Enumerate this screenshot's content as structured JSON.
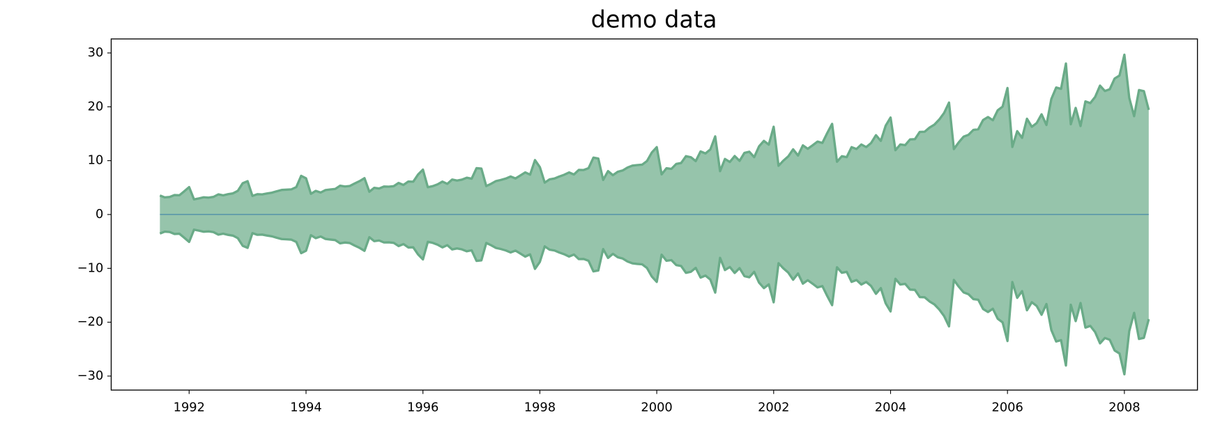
{
  "chart_data": {
    "type": "fill_between",
    "title": "demo data",
    "mirror": true,
    "baseline": 0,
    "fill_color": "#96c4ab",
    "edge_color": "#6aab88",
    "baseline_color": "#3f82a8",
    "x": [
      "1991-07",
      "1991-08",
      "1991-09",
      "1991-10",
      "1991-11",
      "1991-12",
      "1992-01",
      "1992-02",
      "1992-03",
      "1992-04",
      "1992-05",
      "1992-06",
      "1992-07",
      "1992-08",
      "1992-09",
      "1992-10",
      "1992-11",
      "1992-12",
      "1993-01",
      "1993-02",
      "1993-03",
      "1993-04",
      "1993-05",
      "1993-06",
      "1993-07",
      "1993-08",
      "1993-09",
      "1993-10",
      "1993-11",
      "1993-12",
      "1994-01",
      "1994-02",
      "1994-03",
      "1994-04",
      "1994-05",
      "1994-06",
      "1994-07",
      "1994-08",
      "1994-09",
      "1994-10",
      "1994-11",
      "1994-12",
      "1995-01",
      "1995-02",
      "1995-03",
      "1995-04",
      "1995-05",
      "1995-06",
      "1995-07",
      "1995-08",
      "1995-09",
      "1995-10",
      "1995-11",
      "1995-12",
      "1996-01",
      "1996-02",
      "1996-03",
      "1996-04",
      "1996-05",
      "1996-06",
      "1996-07",
      "1996-08",
      "1996-09",
      "1996-10",
      "1996-11",
      "1996-12",
      "1997-01",
      "1997-02",
      "1997-03",
      "1997-04",
      "1997-05",
      "1997-06",
      "1997-07",
      "1997-08",
      "1997-09",
      "1997-10",
      "1997-11",
      "1997-12",
      "1998-01",
      "1998-02",
      "1998-03",
      "1998-04",
      "1998-05",
      "1998-06",
      "1998-07",
      "1998-08",
      "1998-09",
      "1998-10",
      "1998-11",
      "1998-12",
      "1999-01",
      "1999-02",
      "1999-03",
      "1999-04",
      "1999-05",
      "1999-06",
      "1999-07",
      "1999-08",
      "1999-09",
      "1999-10",
      "1999-11",
      "1999-12",
      "2000-01",
      "2000-02",
      "2000-03",
      "2000-04",
      "2000-05",
      "2000-06",
      "2000-07",
      "2000-08",
      "2000-09",
      "2000-10",
      "2000-11",
      "2000-12",
      "2001-01",
      "2001-02",
      "2001-03",
      "2001-04",
      "2001-05",
      "2001-06",
      "2001-07",
      "2001-08",
      "2001-09",
      "2001-10",
      "2001-11",
      "2001-12",
      "2002-01",
      "2002-02",
      "2002-03",
      "2002-04",
      "2002-05",
      "2002-06",
      "2002-07",
      "2002-08",
      "2002-09",
      "2002-10",
      "2002-11",
      "2002-12",
      "2003-01",
      "2003-02",
      "2003-03",
      "2003-04",
      "2003-05",
      "2003-06",
      "2003-07",
      "2003-08",
      "2003-09",
      "2003-10",
      "2003-11",
      "2003-12",
      "2004-01",
      "2004-02",
      "2004-03",
      "2004-04",
      "2004-05",
      "2004-06",
      "2004-07",
      "2004-08",
      "2004-09",
      "2004-10",
      "2004-11",
      "2004-12",
      "2005-01",
      "2005-02",
      "2005-03",
      "2005-04",
      "2005-05",
      "2005-06",
      "2005-07",
      "2005-08",
      "2005-09",
      "2005-10",
      "2005-11",
      "2005-12",
      "2006-01",
      "2006-02",
      "2006-03",
      "2006-04",
      "2006-05",
      "2006-06",
      "2006-07",
      "2006-08",
      "2006-09",
      "2006-10",
      "2006-11",
      "2006-12",
      "2007-01",
      "2007-02",
      "2007-03",
      "2007-04",
      "2007-05",
      "2007-06",
      "2007-07",
      "2007-08",
      "2007-09",
      "2007-10",
      "2007-11",
      "2007-12",
      "2008-01",
      "2008-02",
      "2008-03",
      "2008-04",
      "2008-05",
      "2008-06"
    ],
    "values": [
      3.53,
      3.18,
      3.25,
      3.61,
      3.57,
      4.31,
      5.09,
      2.81,
      2.99,
      3.2,
      3.13,
      3.27,
      3.74,
      3.56,
      3.78,
      3.92,
      4.39,
      5.81,
      6.19,
      3.45,
      3.77,
      3.73,
      3.91,
      4.05,
      4.32,
      4.56,
      4.61,
      4.67,
      5.09,
      7.18,
      6.73,
      3.84,
      4.39,
      4.08,
      4.54,
      4.65,
      4.75,
      5.35,
      5.2,
      5.3,
      5.77,
      6.2,
      6.75,
      4.22,
      4.95,
      4.82,
      5.19,
      5.17,
      5.26,
      5.86,
      5.49,
      6.12,
      6.09,
      7.42,
      8.33,
      5.07,
      5.26,
      5.6,
      6.11,
      5.69,
      6.49,
      6.3,
      6.47,
      6.83,
      6.65,
      8.61,
      8.52,
      5.28,
      5.71,
      6.21,
      6.41,
      6.67,
      7.05,
      6.7,
      7.25,
      7.82,
      7.4,
      10.1,
      8.8,
      5.92,
      6.53,
      6.68,
      7.06,
      7.38,
      7.81,
      7.43,
      8.28,
      8.26,
      8.6,
      10.56,
      10.39,
      6.42,
      8.06,
      7.3,
      7.94,
      8.17,
      8.72,
      9.07,
      9.18,
      9.25,
      9.93,
      11.53,
      12.51,
      7.46,
      8.59,
      8.47,
      9.39,
      9.56,
      10.83,
      10.64,
      9.91,
      11.71,
      11.34,
      12.08,
      14.5,
      8.05,
      10.31,
      9.75,
      10.85,
      9.96,
      11.44,
      11.66,
      10.65,
      12.65,
      13.67,
      12.97,
      16.3,
      9.05,
      10,
      10.79,
      12.11,
      10.95,
      12.84,
      12.2,
      12.85,
      13.54,
      13.29,
      15.13,
      16.83,
      9.8,
      10.82,
      10.65,
      12.51,
      12.16,
      13,
      12.52,
      13.27,
      14.73,
      13.67,
      16.5,
      18,
      11.94,
      13,
      12.88,
      13.94,
      13.99,
      15.34,
      15.37,
      16.14,
      16.69,
      17.64,
      18.87,
      20.78,
      12.15,
      13.4,
      14.46,
      14.8,
      15.71,
      15.83,
      17.55,
      18.1,
      17.5,
      19.35,
      20.03,
      23.49,
      12.54,
      15.47,
      14.23,
      17.78,
      16.29,
      16.98,
      18.61,
      16.62,
      21.43,
      23.58,
      23.33,
      28.04,
      16.76,
      19.79,
      16.43,
      21,
      20.68,
      21.83,
      23.93,
      22.93,
      23.26,
      25.25,
      25.81,
      29.67,
      21.65,
      18.26,
      23.11,
      22.91,
      19.43
    ],
    "xlim": [
      "1990-09",
      "2009-04"
    ],
    "xticks": [
      "1992",
      "1994",
      "1996",
      "1998",
      "2000",
      "2002",
      "2004",
      "2006",
      "2008"
    ],
    "ylim": [
      -32.6,
      32.6
    ],
    "yticks": [
      {
        "value": -30,
        "label": "−30"
      },
      {
        "value": -20,
        "label": "−20"
      },
      {
        "value": -10,
        "label": "−10"
      },
      0,
      10,
      20,
      30
    ]
  }
}
